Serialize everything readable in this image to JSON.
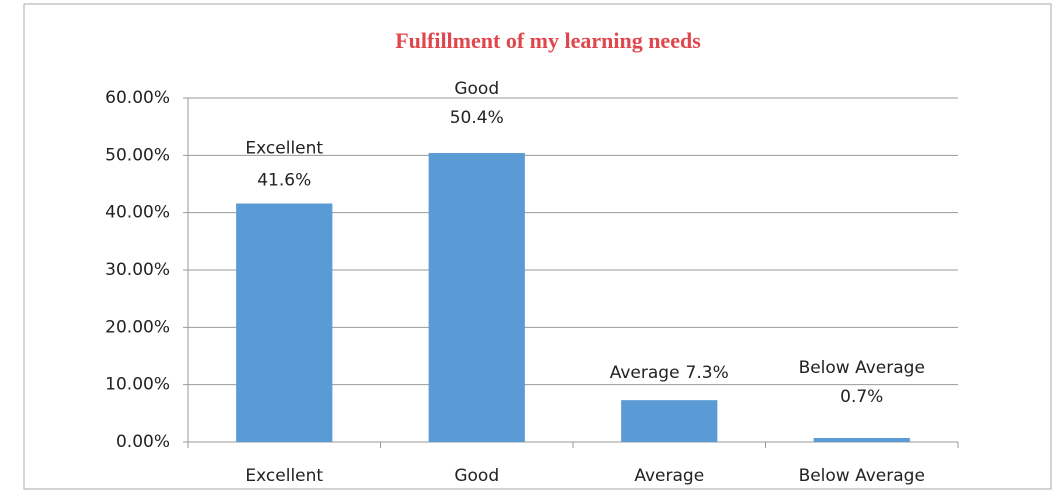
{
  "chart_data": {
    "type": "bar",
    "title": "Fulfillment of my learning needs",
    "categories": [
      "Excellent",
      "Good",
      "Average",
      "Below Average"
    ],
    "values": [
      41.6,
      50.4,
      7.3,
      0.7
    ],
    "value_labels": [
      "41.6%",
      "50.4%",
      "7.3%",
      "0.7%"
    ],
    "color": "#5b9bd5",
    "ylim": [
      0,
      60
    ],
    "yticks": [
      {
        "value": 0,
        "label": "0.00%"
      },
      {
        "value": 10,
        "label": "10.00%"
      },
      {
        "value": 20,
        "label": "20.00%"
      },
      {
        "value": 30,
        "label": "30.00%"
      },
      {
        "value": 40,
        "label": "40.00%"
      },
      {
        "value": 50,
        "label": "50.00%"
      },
      {
        "value": 60,
        "label": "60.00%"
      }
    ],
    "grid": true
  }
}
